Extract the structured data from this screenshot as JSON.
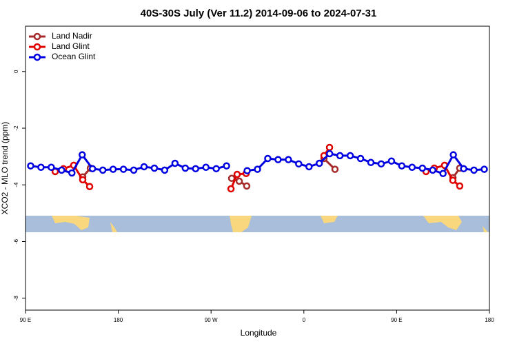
{
  "chart_data": {
    "type": "line",
    "title": "40S-30S July (Ver 11.2)   2014-09-06 to 2024-07-31",
    "xlabel": "Longitude",
    "ylabel": "XCO2 - MLO trend (ppm)",
    "xlim": [
      90,
      540
    ],
    "ylim": [
      -8.42,
      1.6
    ],
    "xticks": [
      {
        "value": 90,
        "label": "90 E"
      },
      {
        "value": 180,
        "label": "180"
      },
      {
        "value": 270,
        "label": "90 W"
      },
      {
        "value": 360,
        "label": "0"
      },
      {
        "value": 450,
        "label": "90 E"
      },
      {
        "value": 540,
        "label": "180"
      }
    ],
    "yticks": [
      0,
      -2,
      -4,
      -6,
      -8
    ],
    "legend": "top-left",
    "series": [
      {
        "name": "Land Nadir",
        "color": "#a52a2a",
        "x": [
          145.5,
          152.9,
          null,
          290,
          297.3,
          304.6,
          null,
          379.5,
          390.2,
          null,
          504.6,
          511.2
        ],
        "values": [
          -3.72,
          -3.41,
          null,
          -3.77,
          -3.87,
          -4.04,
          null,
          -3.07,
          -3.45,
          null,
          -3.75,
          -3.41
        ]
      },
      {
        "name": "Land Glint",
        "color": "#e00000",
        "x": [
          118.8,
          126.8,
          136.8,
          145.5,
          152.2,
          null,
          289.3,
          295.3,
          304,
          null,
          379.5,
          384.9,
          null,
          478.5,
          486.5,
          496.5,
          504.5,
          511.2
        ],
        "values": [
          -3.53,
          -3.43,
          -3.31,
          -3.82,
          -4.06,
          null,
          -4.14,
          -3.63,
          -3.6,
          null,
          -2.97,
          -2.68,
          null,
          -3.53,
          -3.41,
          -3.31,
          -3.84,
          -4.04
        ]
      },
      {
        "name": "Ocean Glint",
        "color": "#0000e0",
        "x": [
          95,
          105,
          115,
          125,
          135,
          145,
          155,
          165,
          175,
          185,
          195,
          205,
          215,
          225,
          235,
          245,
          255,
          265,
          275,
          285,
          null,
          305,
          315,
          325,
          335,
          345,
          355,
          365,
          375,
          385,
          395,
          405,
          415,
          425,
          435,
          445,
          455,
          465,
          475,
          485,
          495,
          505,
          515,
          525,
          535
        ],
        "values": [
          -3.33,
          -3.38,
          -3.38,
          -3.48,
          -3.58,
          -2.94,
          -3.43,
          -3.48,
          -3.45,
          -3.45,
          -3.48,
          -3.36,
          -3.41,
          -3.48,
          -3.24,
          -3.41,
          -3.43,
          -3.38,
          -3.43,
          -3.33,
          null,
          -3.5,
          -3.45,
          -3.07,
          -3.11,
          -3.11,
          -3.26,
          -3.36,
          -3.24,
          -2.9,
          -2.97,
          -2.97,
          -3.07,
          -3.21,
          -3.26,
          -3.16,
          -3.33,
          -3.38,
          -3.41,
          -3.48,
          -3.6,
          -2.94,
          -3.43,
          -3.48,
          -3.45
        ]
      }
    ]
  }
}
